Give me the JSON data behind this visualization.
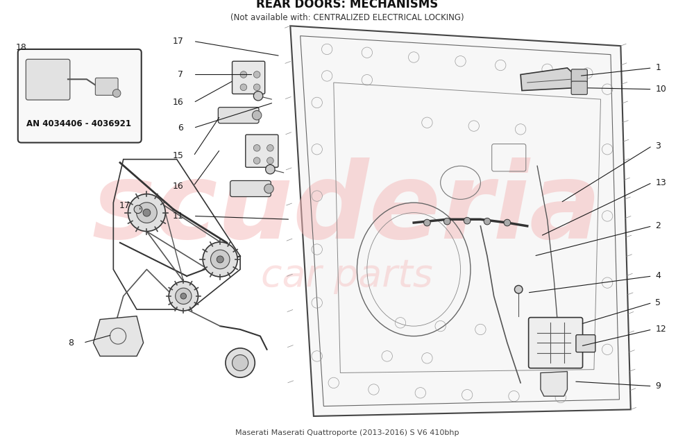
{
  "title": "REAR DOORS: MECHANISMS",
  "subtitle": "(Not available with: CENTRALIZED ELECTRICAL LOCKING)",
  "car_info": "Maserati Maserati Quattroporte (2013-2016) S V6 410bhp",
  "bg_color": "#ffffff",
  "line_color": "#1a1a1a",
  "watermark_text": "scuderia",
  "watermark_sub": "car parts",
  "watermark_color": "#f5b8b8",
  "box_label": "AN 4034406 - 4036921",
  "font_size_title": 11,
  "font_size_label": 9
}
